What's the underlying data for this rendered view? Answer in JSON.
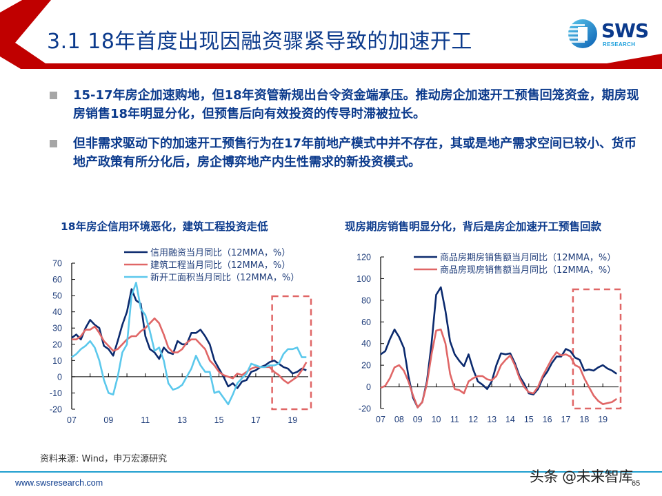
{
  "slide": {
    "title": "3.1 18年首度出现因融资骤紧导致的加速开工",
    "page_number": "65",
    "logo": {
      "name": "SWS",
      "sub": "RESEARCH"
    },
    "accent_color": "#c00000",
    "brand_color": "#0b3a8c"
  },
  "bullets": [
    {
      "text": "15-17年房企加速购地，但18年资管新规出台令资金端承压。推动房企加速开工预售回笼资金，期房现房销售18年明显分化，但预售后向有效投资的传导时滞被拉长。"
    },
    {
      "text": "但非需求驱动下的加速开工预售行为在17年前地产模式中并不存在，其或是地产需求空间已较小、货币地产政策有所分化后，房企博弈地产内生性需求的新投资模式。"
    }
  ],
  "footer": {
    "source": "资料来源: Wind，申万宏源研究",
    "url": "www.swsresearch.com",
    "watermark": "头条 @未来智库"
  },
  "chart_data": [
    {
      "type": "line",
      "title": "18年房企信用环境恶化，建筑工程投资走低",
      "xlabel": "",
      "ylabel": "",
      "ylim": [
        -20,
        70
      ],
      "yticks": [
        "70",
        "60",
        "50",
        "40",
        "30",
        "20",
        "10",
        "0",
        "-10",
        "-20"
      ],
      "xticks": [
        "07",
        "09",
        "11",
        "13",
        "15",
        "17",
        "19"
      ],
      "grid": false,
      "legend_position": "top-right",
      "highlight_box": {
        "from": "2018",
        "to": "2019.8"
      },
      "x": [
        2007.0,
        2007.25,
        2007.5,
        2007.75,
        2008.0,
        2008.25,
        2008.5,
        2008.75,
        2009.0,
        2009.25,
        2009.5,
        2009.75,
        2010.0,
        2010.25,
        2010.5,
        2010.75,
        2011.0,
        2011.25,
        2011.5,
        2011.75,
        2012.0,
        2012.25,
        2012.5,
        2012.75,
        2013.0,
        2013.25,
        2013.5,
        2013.75,
        2014.0,
        2014.25,
        2014.5,
        2014.75,
        2015.0,
        2015.25,
        2015.5,
        2015.75,
        2016.0,
        2016.25,
        2016.5,
        2016.75,
        2017.0,
        2017.25,
        2017.5,
        2017.75,
        2018.0,
        2018.25,
        2018.5,
        2018.75,
        2019.0,
        2019.25,
        2019.5,
        2019.75
      ],
      "series": [
        {
          "name": "信用融资当月同比（12MMA，%）",
          "color": "#0b2a6e",
          "values": [
            24,
            26,
            23,
            30,
            35,
            32,
            30,
            19,
            17,
            13,
            22,
            32,
            40,
            54,
            47,
            45,
            25,
            17,
            15,
            11,
            18,
            15,
            14,
            22,
            20,
            20,
            27,
            27,
            29,
            25,
            20,
            10,
            5,
            0,
            -6,
            -4,
            -7,
            -3,
            -2,
            3,
            4,
            6,
            7,
            9,
            10,
            8,
            6,
            5,
            2,
            3,
            5,
            4
          ]
        },
        {
          "name": "建筑工程当月同比（12MMA，%）",
          "color": "#e06666",
          "values": [
            23,
            23,
            25,
            29,
            29,
            31,
            27,
            22,
            19,
            16,
            17,
            20,
            23,
            25,
            25,
            28,
            30,
            33,
            36,
            33,
            26,
            18,
            15,
            15,
            17,
            21,
            23,
            23,
            20,
            17,
            10,
            7,
            3,
            1,
            0,
            -1,
            2,
            1,
            3,
            5,
            6,
            6,
            6,
            6,
            3,
            1,
            -2,
            -4,
            -2,
            0,
            4,
            9
          ]
        },
        {
          "name": "新开工面积当月同比（12MMA，%）",
          "color": "#5bc8ec",
          "values": [
            12,
            14,
            17,
            19,
            22,
            18,
            10,
            -2,
            -10,
            -11,
            0,
            15,
            20,
            50,
            58,
            42,
            38,
            28,
            16,
            18,
            10,
            -4,
            -8,
            -7,
            -5,
            0,
            5,
            13,
            7,
            3,
            3,
            -10,
            -9,
            -13,
            -17,
            -11,
            -4,
            -1,
            2,
            8,
            7,
            6,
            6,
            7,
            7,
            8,
            14,
            17,
            17,
            18,
            12,
            12
          ]
        }
      ]
    },
    {
      "type": "line",
      "title": "现房期房销售明显分化，背后是房企加速开工预售回款",
      "xlabel": "",
      "ylabel": "",
      "ylim": [
        -20,
        120
      ],
      "yticks": [
        "120",
        "100",
        "80",
        "60",
        "40",
        "20",
        "0",
        "-20"
      ],
      "xticks": [
        "07",
        "08",
        "09",
        "10",
        "11",
        "12",
        "13",
        "14",
        "15",
        "16",
        "17",
        "18",
        "19"
      ],
      "grid": false,
      "legend_position": "top-right",
      "highlight_box": {
        "from": "2017.5",
        "to": "2019.8"
      },
      "x": [
        2007.0,
        2007.25,
        2007.5,
        2007.75,
        2008.0,
        2008.25,
        2008.5,
        2008.75,
        2009.0,
        2009.25,
        2009.5,
        2009.75,
        2010.0,
        2010.25,
        2010.5,
        2010.75,
        2011.0,
        2011.25,
        2011.5,
        2011.75,
        2012.0,
        2012.25,
        2012.5,
        2012.75,
        2013.0,
        2013.25,
        2013.5,
        2013.75,
        2014.0,
        2014.25,
        2014.5,
        2014.75,
        2015.0,
        2015.25,
        2015.5,
        2015.75,
        2016.0,
        2016.25,
        2016.5,
        2016.75,
        2017.0,
        2017.25,
        2017.5,
        2017.75,
        2018.0,
        2018.25,
        2018.5,
        2018.75,
        2019.0,
        2019.25,
        2019.5,
        2019.75
      ],
      "series": [
        {
          "name": "商品房期房销售额当月同比（12MMA，%）",
          "color": "#0b2a6e",
          "values": [
            30,
            33,
            44,
            53,
            46,
            36,
            10,
            -10,
            -19,
            -14,
            5,
            40,
            85,
            92,
            70,
            42,
            30,
            24,
            19,
            30,
            16,
            5,
            2,
            -2,
            5,
            20,
            31,
            30,
            31,
            22,
            10,
            3,
            -6,
            -7,
            -2,
            8,
            14,
            22,
            28,
            28,
            35,
            33,
            27,
            25,
            15,
            16,
            15,
            18,
            20,
            17,
            15,
            12
          ]
        },
        {
          "name": "商品房现房销售额当月同比（12MMA，%）",
          "color": "#e06666",
          "values": [
            -1,
            1,
            8,
            18,
            20,
            15,
            5,
            -8,
            -19,
            -14,
            3,
            30,
            52,
            53,
            40,
            12,
            -2,
            -3,
            -6,
            5,
            8,
            10,
            10,
            7,
            6,
            10,
            20,
            25,
            29,
            20,
            8,
            0,
            -5,
            -6,
            0,
            10,
            18,
            26,
            32,
            29,
            30,
            28,
            20,
            18,
            8,
            0,
            -8,
            -13,
            -16,
            -15,
            -14,
            -11
          ]
        }
      ]
    }
  ]
}
